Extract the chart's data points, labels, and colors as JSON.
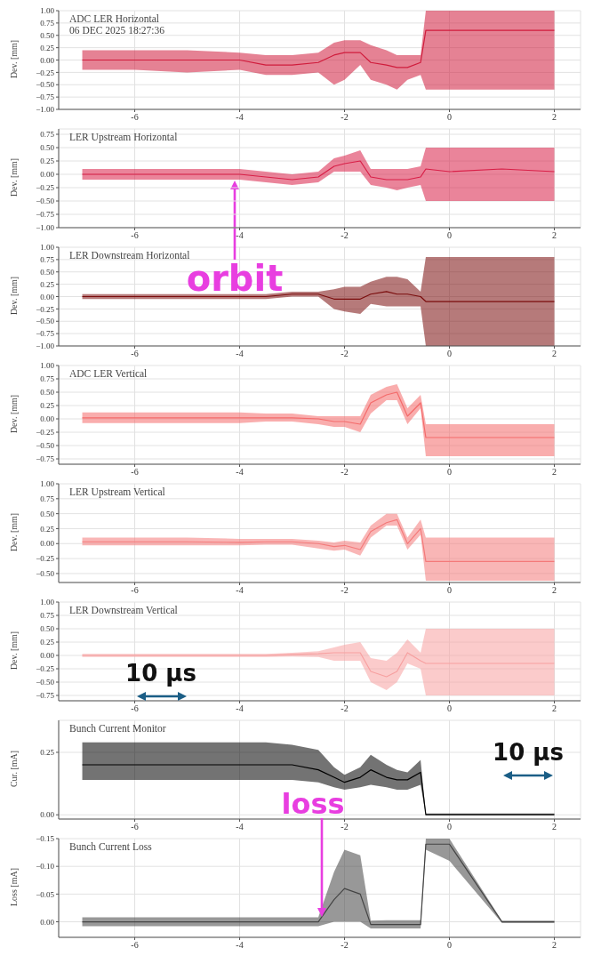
{
  "chart_data": [
    {
      "type": "line",
      "title": "ADC LER Horizontal",
      "subtitle": "06 DEC 2025 18:27:36",
      "ylabel": "Dev. [mm]",
      "grid": true,
      "marker": "none",
      "xlim": [
        -7.45,
        2.5
      ],
      "xticks": [
        -6,
        -4,
        -2,
        0,
        2
      ],
      "ylim": [
        -1,
        1
      ],
      "yticks": [
        {
          "value": -1,
          "label": "−1.00"
        },
        {
          "value": -0.75,
          "label": "−0.75"
        },
        {
          "value": -0.5,
          "label": "−0.50"
        },
        {
          "value": -0.25,
          "label": "−0.25"
        },
        {
          "value": 0,
          "label": "0.00"
        },
        {
          "value": 0.25,
          "label": "0.25"
        },
        {
          "value": 0.5,
          "label": "0.50"
        },
        {
          "value": 0.75,
          "label": "0.75"
        },
        {
          "value": 1,
          "label": "1.00"
        }
      ],
      "x": [
        -7,
        -6,
        -5,
        -4,
        -3.5,
        -3,
        -2.5,
        -2.2,
        -2,
        -1.7,
        -1.5,
        -1.2,
        -1,
        -0.8,
        -0.55,
        -0.45,
        0,
        1,
        2
      ],
      "series": [
        {
          "color": "#d01c3c",
          "values": [
            0,
            0,
            0,
            0,
            -0.1,
            -0.1,
            -0.05,
            0.1,
            0.15,
            0.15,
            -0.05,
            -0.1,
            -0.15,
            -0.15,
            -0.05,
            0.6,
            0.6,
            0.6,
            0.6
          ],
          "lower": [
            -0.2,
            -0.2,
            -0.25,
            -0.2,
            -0.3,
            -0.3,
            -0.25,
            -0.5,
            -0.4,
            -0.1,
            -0.4,
            -0.5,
            -0.6,
            -0.4,
            -0.3,
            -0.6,
            -0.6,
            -0.6,
            -0.6
          ],
          "upper": [
            0.2,
            0.2,
            0.2,
            0.15,
            0.1,
            0.1,
            0.15,
            0.35,
            0.4,
            0.4,
            0.3,
            0.2,
            0.1,
            0.1,
            0.1,
            1,
            1,
            1,
            1
          ]
        }
      ]
    },
    {
      "type": "line",
      "title": "LER Upstream Horizontal",
      "ylabel": "Dev. [mm]",
      "grid": true,
      "marker": "none",
      "xlim": [
        -7.45,
        2.5
      ],
      "xticks": [
        -6,
        -4,
        -2,
        0,
        2
      ],
      "ylim": [
        -1,
        0.85
      ],
      "yticks": [
        {
          "value": -1,
          "label": "−1.00"
        },
        {
          "value": -0.75,
          "label": "−0.75"
        },
        {
          "value": -0.5,
          "label": "−0.50"
        },
        {
          "value": -0.25,
          "label": "−0.25"
        },
        {
          "value": 0,
          "label": "0.00"
        },
        {
          "value": 0.25,
          "label": "0.25"
        },
        {
          "value": 0.5,
          "label": "0.50"
        },
        {
          "value": 0.75,
          "label": "0.75"
        }
      ],
      "x": [
        -7,
        -6,
        -5,
        -4,
        -3.5,
        -3,
        -2.5,
        -2.2,
        -2,
        -1.7,
        -1.5,
        -1.2,
        -1,
        -0.8,
        -0.55,
        -0.45,
        0,
        1,
        2
      ],
      "series": [
        {
          "color": "#d81f47",
          "values": [
            0,
            0,
            0,
            0,
            -0.05,
            -0.1,
            -0.05,
            0.15,
            0.2,
            0.25,
            -0.05,
            -0.1,
            -0.1,
            -0.1,
            -0.05,
            0.1,
            0.05,
            0.1,
            0.05
          ],
          "lower": [
            -0.1,
            -0.1,
            -0.1,
            -0.1,
            -0.15,
            -0.2,
            -0.15,
            0.05,
            0.05,
            0.05,
            -0.2,
            -0.25,
            -0.3,
            -0.25,
            -0.2,
            -0.5,
            -0.5,
            -0.5,
            -0.5
          ],
          "upper": [
            0.1,
            0.1,
            0.1,
            0.1,
            0.05,
            0,
            0.05,
            0.3,
            0.35,
            0.45,
            0.1,
            0.1,
            0.1,
            0.1,
            0.15,
            0.5,
            0.5,
            0.5,
            0.5
          ]
        }
      ]
    },
    {
      "type": "line",
      "title": "LER Downstream Horizontal",
      "ylabel": "Dev. [mm]",
      "grid": true,
      "marker": "none",
      "annotations": [
        "orbit"
      ],
      "xlim": [
        -7.45,
        2.5
      ],
      "xticks": [
        -6,
        -4,
        -2,
        0,
        2
      ],
      "ylim": [
        -1,
        1
      ],
      "yticks": [
        {
          "value": -1,
          "label": "−1.00"
        },
        {
          "value": -0.75,
          "label": "−0.75"
        },
        {
          "value": -0.5,
          "label": "−0.50"
        },
        {
          "value": -0.25,
          "label": "−0.25"
        },
        {
          "value": 0,
          "label": "0.00"
        },
        {
          "value": 0.25,
          "label": "0.25"
        },
        {
          "value": 0.5,
          "label": "0.50"
        },
        {
          "value": 0.75,
          "label": "0.75"
        },
        {
          "value": 1,
          "label": "1.00"
        }
      ],
      "x": [
        -7,
        -6,
        -5,
        -4,
        -3.5,
        -3,
        -2.5,
        -2.2,
        -2,
        -1.7,
        -1.5,
        -1.2,
        -1,
        -0.8,
        -0.55,
        -0.45,
        0,
        1,
        2
      ],
      "series": [
        {
          "color": "#7a0c0c",
          "values": [
            0,
            0,
            0,
            0,
            0,
            0.05,
            0.05,
            -0.05,
            -0.05,
            -0.05,
            0.05,
            0.1,
            0.05,
            0.05,
            0,
            -0.1,
            -0.1,
            -0.1,
            -0.1
          ],
          "lower": [
            -0.05,
            -0.05,
            -0.05,
            -0.05,
            -0.05,
            0,
            0,
            -0.25,
            -0.3,
            -0.35,
            -0.15,
            -0.2,
            -0.2,
            -0.2,
            -0.2,
            -1,
            -1,
            -1,
            -1
          ],
          "upper": [
            0.05,
            0.05,
            0.05,
            0.05,
            0.05,
            0.1,
            0.1,
            0.15,
            0.2,
            0.2,
            0.3,
            0.4,
            0.4,
            0.35,
            0.1,
            0.8,
            0.8,
            0.8,
            0.8
          ]
        }
      ]
    },
    {
      "type": "line",
      "title": "ADC LER Vertical",
      "ylabel": "Dev. [mm]",
      "grid": true,
      "marker": "none",
      "xlim": [
        -7.45,
        2.5
      ],
      "xticks": [
        -6,
        -4,
        -2,
        0,
        2
      ],
      "ylim": [
        -0.85,
        1
      ],
      "yticks": [
        {
          "value": -0.75,
          "label": "−0.75"
        },
        {
          "value": -0.5,
          "label": "−0.50"
        },
        {
          "value": -0.25,
          "label": "−0.25"
        },
        {
          "value": 0,
          "label": "0.00"
        },
        {
          "value": 0.25,
          "label": "0.25"
        },
        {
          "value": 0.5,
          "label": "0.50"
        },
        {
          "value": 0.75,
          "label": "0.75"
        },
        {
          "value": 1,
          "label": "1.00"
        }
      ],
      "x": [
        -7,
        -6,
        -5,
        -4,
        -3.5,
        -3,
        -2.5,
        -2.2,
        -2,
        -1.7,
        -1.5,
        -1.2,
        -1,
        -0.8,
        -0.55,
        -0.45,
        0,
        1,
        2
      ],
      "series": [
        {
          "color": "#f46a6a",
          "values": [
            0.02,
            0.02,
            0.02,
            0.02,
            0.02,
            0.02,
            0,
            -0.05,
            -0.05,
            -0.1,
            0.3,
            0.45,
            0.5,
            0.05,
            0.3,
            -0.35,
            -0.35,
            -0.35,
            -0.35
          ],
          "lower": [
            -0.08,
            -0.08,
            -0.08,
            -0.08,
            -0.05,
            -0.05,
            -0.1,
            -0.15,
            -0.15,
            -0.25,
            0.1,
            0.35,
            0.35,
            -0.1,
            0.2,
            -0.7,
            -0.7,
            -0.7,
            -0.7
          ],
          "upper": [
            0.12,
            0.12,
            0.12,
            0.12,
            0.1,
            0.1,
            0.05,
            0.05,
            0.05,
            0.05,
            0.45,
            0.6,
            0.65,
            0.2,
            0.45,
            -0.1,
            -0.1,
            -0.1,
            -0.1
          ]
        }
      ]
    },
    {
      "type": "line",
      "title": "LER Upstream Vertical",
      "ylabel": "Dev. [mm]",
      "grid": true,
      "marker": "none",
      "xlim": [
        -7.45,
        2.5
      ],
      "xticks": [
        -6,
        -4,
        -2,
        0,
        2
      ],
      "ylim": [
        -0.65,
        1
      ],
      "yticks": [
        {
          "value": -0.5,
          "label": "−0.50"
        },
        {
          "value": -0.25,
          "label": "−0.25"
        },
        {
          "value": 0,
          "label": "0.00"
        },
        {
          "value": 0.25,
          "label": "0.25"
        },
        {
          "value": 0.5,
          "label": "0.50"
        },
        {
          "value": 0.75,
          "label": "0.75"
        },
        {
          "value": 1,
          "label": "1.00"
        }
      ],
      "x": [
        -7,
        -6,
        -5,
        -4,
        -3.5,
        -3,
        -2.5,
        -2.2,
        -2,
        -1.7,
        -1.5,
        -1.2,
        -1,
        -0.8,
        -0.55,
        -0.45,
        0,
        1,
        2
      ],
      "series": [
        {
          "color": "#f47a7a",
          "values": [
            0.03,
            0.03,
            0.03,
            0.02,
            0.03,
            0.03,
            0,
            -0.05,
            -0.03,
            -0.1,
            0.2,
            0.35,
            0.4,
            0,
            0.25,
            -0.3,
            -0.3,
            -0.3,
            -0.3
          ],
          "lower": [
            -0.03,
            -0.03,
            -0.03,
            -0.03,
            -0.02,
            -0.02,
            -0.08,
            -0.12,
            -0.1,
            -0.2,
            0.1,
            0.3,
            0.3,
            -0.1,
            0.15,
            -0.62,
            -0.62,
            -0.62,
            -0.62
          ],
          "upper": [
            0.1,
            0.1,
            0.1,
            0.08,
            0.08,
            0.08,
            0.05,
            0.02,
            0.05,
            0.02,
            0.3,
            0.5,
            0.5,
            0.1,
            0.4,
            0.1,
            0.1,
            0.1,
            0.1
          ]
        }
      ]
    },
    {
      "type": "line",
      "title": "LER Downstream Vertical",
      "ylabel": "Dev. [mm]",
      "grid": true,
      "marker": "none",
      "annotations": [
        "10 µs"
      ],
      "xlim": [
        -7.45,
        2.5
      ],
      "xticks": [
        -6,
        -4,
        -2,
        0,
        2
      ],
      "ylim": [
        -0.85,
        1
      ],
      "yticks": [
        {
          "value": -0.75,
          "label": "−0.75"
        },
        {
          "value": -0.5,
          "label": "−0.50"
        },
        {
          "value": -0.25,
          "label": "−0.25"
        },
        {
          "value": 0,
          "label": "0.00"
        },
        {
          "value": 0.25,
          "label": "0.25"
        },
        {
          "value": 0.5,
          "label": "0.50"
        },
        {
          "value": 0.75,
          "label": "0.75"
        },
        {
          "value": 1,
          "label": "1.00"
        }
      ],
      "x": [
        -7,
        -6,
        -5,
        -4,
        -3.5,
        -3,
        -2.5,
        -2.2,
        -2,
        -1.7,
        -1.5,
        -1.2,
        -1,
        -0.8,
        -0.55,
        -0.45,
        0,
        1,
        2
      ],
      "series": [
        {
          "color": "#f7a0a0",
          "values": [
            0,
            0,
            0,
            0,
            0,
            0.02,
            0.03,
            0.05,
            0.05,
            0.05,
            -0.3,
            -0.4,
            -0.3,
            0.05,
            -0.1,
            -0.15,
            -0.15,
            -0.15,
            -0.15
          ],
          "lower": [
            -0.03,
            -0.03,
            -0.03,
            -0.03,
            -0.03,
            -0.02,
            -0.03,
            -0.1,
            -0.1,
            -0.1,
            -0.5,
            -0.65,
            -0.5,
            -0.15,
            -0.25,
            -0.75,
            -0.75,
            -0.75,
            -0.75
          ],
          "upper": [
            0.03,
            0.03,
            0.03,
            0.03,
            0.03,
            0.05,
            0.08,
            0.15,
            0.2,
            0.25,
            -0.05,
            -0.1,
            0.05,
            0.3,
            0.05,
            0.5,
            0.5,
            0.5,
            0.5
          ]
        }
      ]
    },
    {
      "type": "line",
      "title": "Bunch Current Monitor",
      "ylabel": "Cur. [mA]",
      "grid": true,
      "marker": "none",
      "annotations": [
        "10 µs",
        "loss"
      ],
      "xlim": [
        -7.45,
        2.5
      ],
      "xticks": [
        -6,
        -4,
        -2,
        0,
        2
      ],
      "ylim": [
        -0.017,
        0.378
      ],
      "yticks": [
        {
          "value": 0,
          "label": "0.00"
        },
        {
          "value": 0.25,
          "label": "0.25"
        }
      ],
      "x": [
        -7,
        -6,
        -5,
        -4,
        -3.5,
        -3,
        -2.5,
        -2.2,
        -2,
        -1.7,
        -1.5,
        -1.2,
        -1,
        -0.8,
        -0.55,
        -0.45,
        0,
        1,
        2
      ],
      "series": [
        {
          "color": "#000000",
          "values": [
            0.2,
            0.2,
            0.2,
            0.2,
            0.2,
            0.2,
            0.18,
            0.15,
            0.13,
            0.15,
            0.18,
            0.15,
            0.14,
            0.14,
            0.17,
            0,
            0,
            0,
            0
          ],
          "lower": [
            0.14,
            0.14,
            0.14,
            0.14,
            0.14,
            0.14,
            0.13,
            0.11,
            0.1,
            0.11,
            0.12,
            0.11,
            0.1,
            0.1,
            0.12,
            0,
            0,
            0,
            0
          ],
          "upper": [
            0.29,
            0.29,
            0.29,
            0.29,
            0.29,
            0.28,
            0.26,
            0.19,
            0.16,
            0.19,
            0.24,
            0.2,
            0.18,
            0.17,
            0.22,
            0.005,
            0.005,
            0.005,
            0.005
          ]
        }
      ]
    },
    {
      "type": "line",
      "title": "Bunch Current Loss",
      "ylabel": "Loss [mA]",
      "grid": true,
      "marker": "none",
      "xlim": [
        -7.45,
        2.5
      ],
      "xticks": [
        -6,
        -4,
        -2,
        0,
        2
      ],
      "ylim": [
        0.028,
        -0.15
      ],
      "yticks": [
        {
          "value": -0.15,
          "label": "−0.15"
        },
        {
          "value": -0.1,
          "label": "−0.10"
        },
        {
          "value": -0.05,
          "label": "−0.05"
        },
        {
          "value": 0,
          "label": "0.00"
        }
      ],
      "x": [
        -7,
        -6,
        -5,
        -4,
        -3.5,
        -3,
        -2.5,
        -2.2,
        -2,
        -1.7,
        -1.5,
        -1.2,
        -1,
        -0.8,
        -0.55,
        -0.45,
        0,
        1,
        2
      ],
      "series": [
        {
          "color": "#444444",
          "values": [
            0,
            0,
            0,
            0,
            0,
            0,
            0,
            -0.04,
            -0.06,
            -0.05,
            0.005,
            0.005,
            0.005,
            0.005,
            0.005,
            -0.14,
            -0.14,
            0,
            0
          ],
          "lower": [
            -0.008,
            -0.008,
            -0.008,
            -0.008,
            -0.008,
            -0.008,
            -0.008,
            -0.09,
            -0.13,
            -0.12,
            -0.002,
            -0.003,
            -0.003,
            -0.003,
            -0.003,
            -0.15,
            -0.15,
            -0.002,
            -0.002
          ],
          "upper": [
            0.008,
            0.008,
            0.008,
            0.008,
            0.008,
            0.008,
            0.008,
            0,
            0,
            0,
            0.012,
            0.012,
            0.012,
            0.012,
            0.012,
            -0.13,
            -0.11,
            0.002,
            0.002
          ]
        }
      ]
    }
  ]
}
